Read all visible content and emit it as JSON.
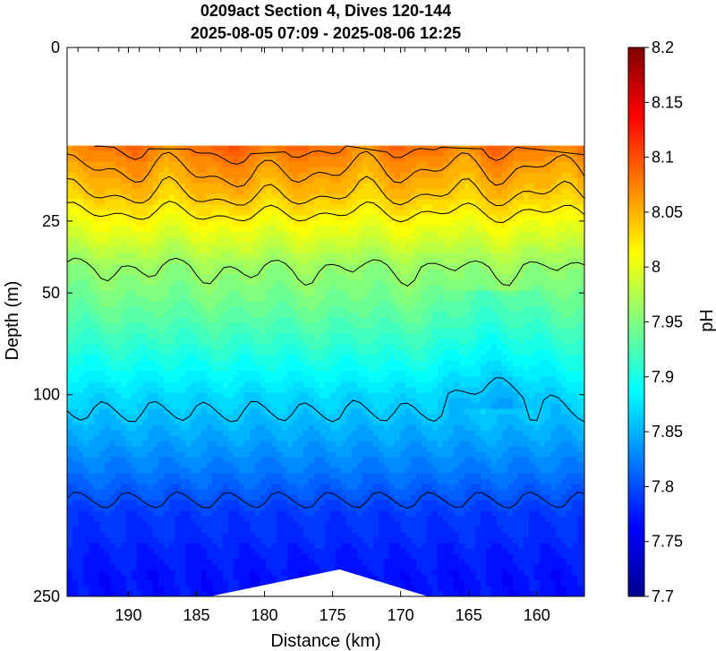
{
  "title_line1": "0209act Section 4, Dives 120-144",
  "title_line2": "2025-08-05 07:09 - 2025-08-06 12:25",
  "chart_data": {
    "type": "heatmap",
    "title": "0209act Section 4, Dives 120-144\n2025-08-05 07:09 - 2025-08-06 12:25",
    "xlabel": "Distance (km)",
    "ylabel": "Depth (m)",
    "colorbar_label": "pH",
    "x_reversed": true,
    "xlim": [
      194.5,
      156.5
    ],
    "ylim": [
      0,
      250
    ],
    "y_scale": "sqrt",
    "x_ticks": [
      190,
      185,
      180,
      175,
      170,
      165,
      160
    ],
    "x_tick_labels": [
      "190",
      "185",
      "180",
      "175",
      "170",
      "165",
      "160"
    ],
    "y_ticks": [
      0,
      25,
      50,
      100,
      250
    ],
    "y_tick_labels": [
      "0",
      "25",
      "50",
      "100",
      "250"
    ],
    "colorbar_range": [
      7.7,
      8.2
    ],
    "colorbar_ticks": [
      7.7,
      7.75,
      7.8,
      7.85,
      7.9,
      7.95,
      8,
      8.05,
      8.1,
      8.15,
      8.2
    ],
    "colorbar_tick_labels": [
      "7.7",
      "7.75",
      "7.8",
      "7.85",
      "7.9",
      "7.95",
      "8",
      "8.05",
      "8.1",
      "8.15",
      "8.2"
    ],
    "colormap": "jet",
    "data_top_depth_m": 8,
    "depth_levels_m": [
      8,
      12,
      18,
      25,
      40,
      55,
      80,
      100,
      140,
      180,
      230,
      250
    ],
    "ph_profile": [
      8.08,
      8.06,
      8.04,
      8.01,
      7.96,
      7.94,
      7.9,
      7.87,
      7.83,
      7.79,
      7.77,
      7.77
    ],
    "contour_levels": [
      8.1,
      8.08,
      8.06,
      8.04,
      8.02,
      7.96,
      7.86,
      7.8
    ],
    "bottom_gap_distance_km": [
      184,
      174.5,
      168
    ],
    "grid": false,
    "legend": "none"
  }
}
